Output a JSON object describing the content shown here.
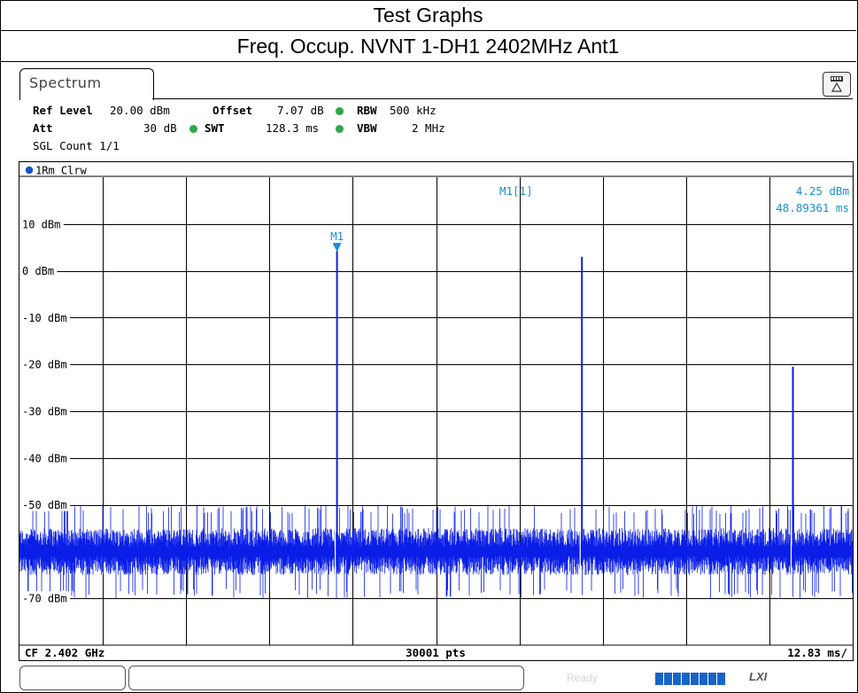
{
  "header": {
    "title": "Test Graphs",
    "subtitle": "Freq. Occup. NVNT 1-DH1 2402MHz Ant1"
  },
  "instrument": {
    "tab_label": "Spectrum",
    "ref_level_label": "Ref Level",
    "ref_level_value": "20.00 dBm",
    "offset_label": "Offset",
    "offset_value": "7.07 dB",
    "rbw_label": "RBW",
    "rbw_value": "500 kHz",
    "att_label": "Att",
    "att_value": "30 dB",
    "swt_label": "SWT",
    "swt_value": "128.3 ms",
    "vbw_label": "VBW",
    "vbw_value": "2 MHz",
    "sgl_count": "SGL Count 1/1",
    "trace_label": "1Rm Clrw",
    "status_text": "Ready",
    "lxi_label": "LXI"
  },
  "colors": {
    "trace": "#0a1ee8",
    "marker": "#1a8fd6",
    "indicator": "#2ea84a",
    "grid": "#000000"
  },
  "chart_data": {
    "type": "line",
    "title": "",
    "xlabel": "",
    "ylabel": "",
    "x_unit": "ms",
    "x_range": [
      0,
      128.3
    ],
    "ylim": [
      -80,
      20
    ],
    "y_ticks": [
      "10 dBm",
      "0 dBm",
      "-10 dBm",
      "-20 dBm",
      "-30 dBm",
      "-40 dBm",
      "-50 dBm",
      "-70 dBm"
    ],
    "y_tick_values": [
      10,
      0,
      -10,
      -20,
      -30,
      -40,
      -50,
      -70
    ],
    "grid": true,
    "noise_floor": {
      "min": -68,
      "max": -52,
      "typical_low": -63,
      "typical_high": -57
    },
    "series": [
      {
        "peaks": [
          {
            "x": 48.89,
            "y": 4.25,
            "width_ms": 0.15
          },
          {
            "x": 86.6,
            "y": 3.0,
            "width_ms": 0.12
          },
          {
            "x": 119.1,
            "y": -20.5,
            "width_ms": 0.12
          }
        ]
      }
    ],
    "marker": {
      "label": "M1",
      "readout_label": "M1[1]",
      "readout_value": "4.25 dBm",
      "readout_time": "48.89361 ms",
      "x": 48.89361,
      "y": 4.25
    },
    "footer": {
      "left": "CF 2.402 GHz",
      "center": "30001 pts",
      "right": "12.83 ms/"
    }
  }
}
